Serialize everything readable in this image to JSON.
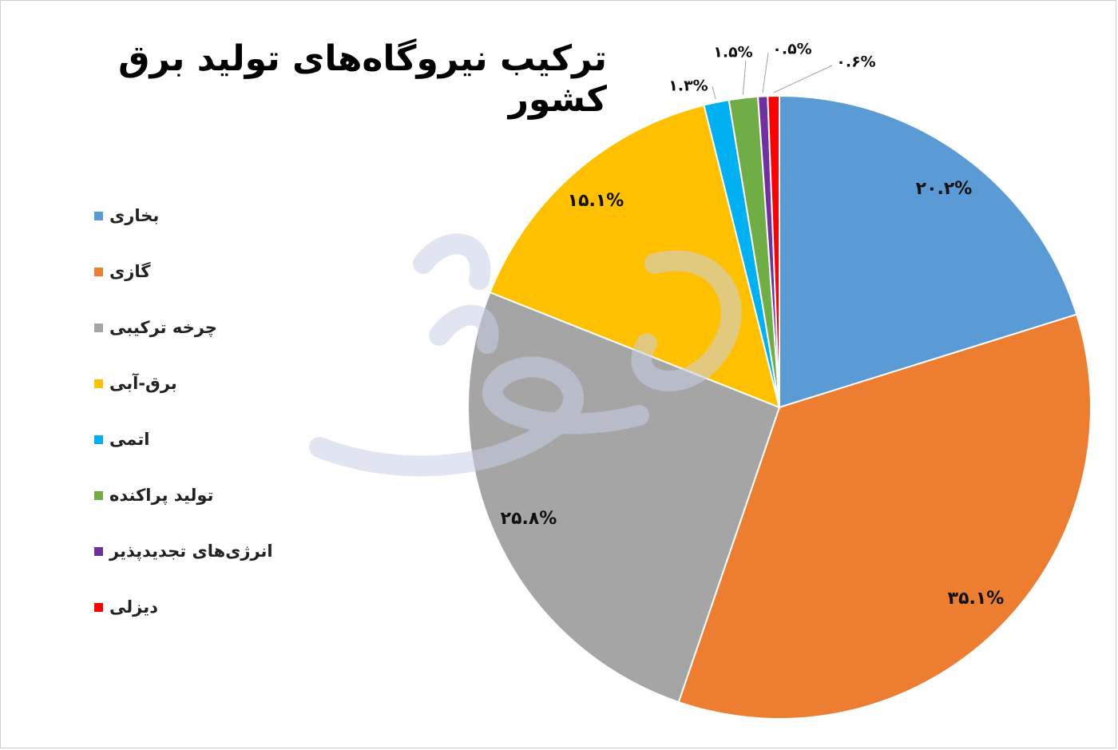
{
  "title": "ترکیب نیروگاه‌های تولید برق کشور",
  "watermark_text": "جهان صنعت نیوز",
  "chart_data": {
    "type": "pie",
    "title": "ترکیب نیروگاه‌های تولید برق کشور",
    "legend_position": "left",
    "slices": [
      {
        "label": "بخاری",
        "value": 20.2,
        "value_label": "۲۰.۲%",
        "color": "#5B9BD5"
      },
      {
        "label": "گازی",
        "value": 35.1,
        "value_label": "۳۵.۱%",
        "color": "#ED7D31"
      },
      {
        "label": "چرخه ترکیبی",
        "value": 25.8,
        "value_label": "۲۵.۸%",
        "color": "#A5A5A5"
      },
      {
        "label": "برق-آبی",
        "value": 15.1,
        "value_label": "۱۵.۱%",
        "color": "#FFC000"
      },
      {
        "label": "اتمی",
        "value": 1.3,
        "value_label": "۱.۳%",
        "color": "#00B0F0"
      },
      {
        "label": "تولید پراکنده",
        "value": 1.5,
        "value_label": "۱.۵%",
        "color": "#70AD47"
      },
      {
        "label": "انرژی‌های تجدیدپذیر",
        "value": 0.5,
        "value_label": "۰.۵%",
        "color": "#7030A0"
      },
      {
        "label": "دیزلی",
        "value": 0.6,
        "value_label": "۰.۶%",
        "color": "#FF0000"
      }
    ]
  }
}
